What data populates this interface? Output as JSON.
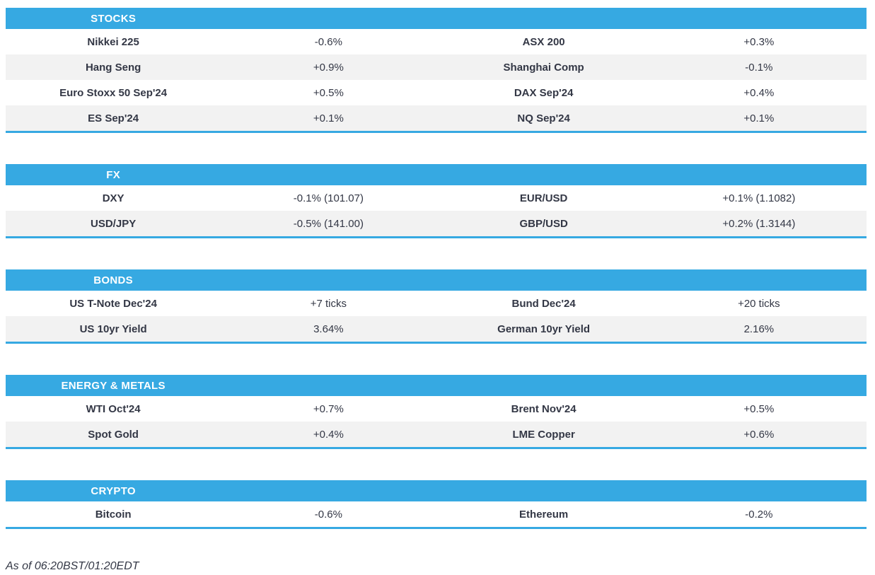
{
  "sections": [
    {
      "title": "STOCKS",
      "rows": [
        {
          "label1": "Nikkei 225",
          "value1": "-0.6%",
          "label2": "ASX 200",
          "value2": "+0.3%"
        },
        {
          "label1": "Hang Seng",
          "value1": "+0.9%",
          "label2": "Shanghai Comp",
          "value2": "-0.1%"
        },
        {
          "label1": "Euro Stoxx 50 Sep'24",
          "value1": "+0.5%",
          "label2": "DAX Sep'24",
          "value2": "+0.4%"
        },
        {
          "label1": "ES Sep'24",
          "value1": "+0.1%",
          "label2": "NQ Sep'24",
          "value2": "+0.1%"
        }
      ]
    },
    {
      "title": "FX",
      "rows": [
        {
          "label1": "DXY",
          "value1": "-0.1% (101.07)",
          "label2": "EUR/USD",
          "value2": "+0.1% (1.1082)"
        },
        {
          "label1": "USD/JPY",
          "value1": "-0.5% (141.00)",
          "label2": "GBP/USD",
          "value2": "+0.2% (1.3144)"
        }
      ]
    },
    {
      "title": "BONDS",
      "rows": [
        {
          "label1": "US T-Note Dec'24",
          "value1": "+7 ticks",
          "label2": "Bund Dec'24",
          "value2": "+20 ticks"
        },
        {
          "label1": "US 10yr Yield",
          "value1": "3.64%",
          "label2": "German 10yr Yield",
          "value2": "2.16%"
        }
      ]
    },
    {
      "title": "ENERGY & METALS",
      "rows": [
        {
          "label1": "WTI Oct'24",
          "value1": "+0.7%",
          "label2": "Brent Nov'24",
          "value2": "+0.5%"
        },
        {
          "label1": "Spot Gold",
          "value1": "+0.4%",
          "label2": "LME Copper",
          "value2": "+0.6%"
        }
      ]
    },
    {
      "title": "CRYPTO",
      "rows": [
        {
          "label1": "Bitcoin",
          "value1": "-0.6%",
          "label2": "Ethereum",
          "value2": "-0.2%"
        }
      ]
    }
  ],
  "footer": {
    "as_of": "As of 06:20BST/01:20EDT"
  },
  "colors": {
    "accent_blue": "#36A9E2",
    "row_alt_gray": "#F2F2F2",
    "text_dark": "#333745",
    "header_text": "#FFFFFF"
  }
}
